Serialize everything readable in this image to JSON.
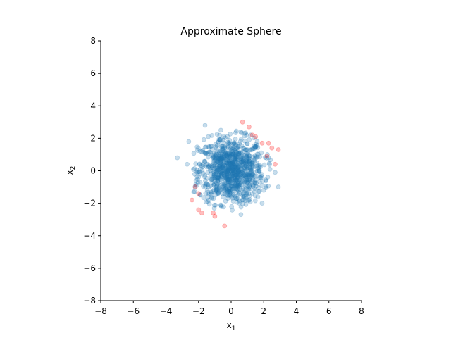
{
  "chart_data": {
    "type": "scatter",
    "title": "Approximate Sphere",
    "xlabel": "x",
    "xlabel_sub": "1",
    "ylabel": "x",
    "ylabel_sub": "2",
    "xlim": [
      -8,
      8
    ],
    "ylim": [
      -8,
      8
    ],
    "xticks": [
      -8,
      -6,
      -4,
      -2,
      0,
      2,
      4,
      6,
      8
    ],
    "yticks": [
      -8,
      -6,
      -4,
      -2,
      0,
      2,
      4,
      6,
      8
    ],
    "grid": false,
    "spines": [
      "left",
      "bottom"
    ],
    "marker_alpha": 0.25,
    "sample_count": 1000,
    "distribution": "isotropic standard normal, mean 0, std 1",
    "series": [
      {
        "color": "#1f77b4",
        "points": [
          [
            0.1,
            0.2
          ],
          [
            -0.3,
            0.5
          ],
          [
            0.6,
            -0.2
          ],
          [
            -0.8,
            -0.4
          ],
          [
            1.0,
            0.7
          ],
          [
            0.3,
            -1.1
          ],
          [
            -1.2,
            0.3
          ],
          [
            0.9,
            1.3
          ],
          [
            -0.5,
            -1.6
          ],
          [
            1.5,
            -0.6
          ],
          [
            -1.6,
            1.1
          ],
          [
            0.2,
            1.7
          ],
          [
            -1.9,
            -0.2
          ],
          [
            1.7,
            0.2
          ],
          [
            -0.7,
            1.9
          ],
          [
            0.5,
            -2.0
          ],
          [
            -2.1,
            -0.9
          ],
          [
            2.0,
            -1.2
          ],
          [
            -1.4,
            2.1
          ],
          [
            1.2,
            2.2
          ],
          [
            -3.3,
            0.8
          ],
          [
            2.9,
            -1.0
          ],
          [
            -2.6,
            1.8
          ],
          [
            2.7,
            -0.1
          ],
          [
            -1.6,
            2.8
          ],
          [
            0.6,
            -2.7
          ],
          [
            -2.3,
            -1.3
          ],
          [
            1.9,
            -2.0
          ],
          [
            -2.7,
            0.4
          ],
          [
            2.3,
            0.8
          ]
        ]
      },
      {
        "color": "#ff0000",
        "points": [
          [
            0.7,
            3.0
          ],
          [
            1.1,
            2.7
          ],
          [
            1.3,
            2.2
          ],
          [
            1.5,
            2.1
          ],
          [
            1.9,
            1.7
          ],
          [
            2.3,
            1.7
          ],
          [
            2.5,
            1.4
          ],
          [
            2.9,
            1.3
          ],
          [
            2.2,
            0.9
          ],
          [
            2.7,
            0.4
          ],
          [
            -2.2,
            -1.0
          ],
          [
            -2.0,
            -1.4
          ],
          [
            -2.4,
            -1.8
          ],
          [
            -2.0,
            -2.4
          ],
          [
            -1.8,
            -2.6
          ],
          [
            -1.1,
            -2.6
          ],
          [
            -1.0,
            -2.8
          ],
          [
            -0.4,
            -3.4
          ]
        ]
      }
    ]
  }
}
